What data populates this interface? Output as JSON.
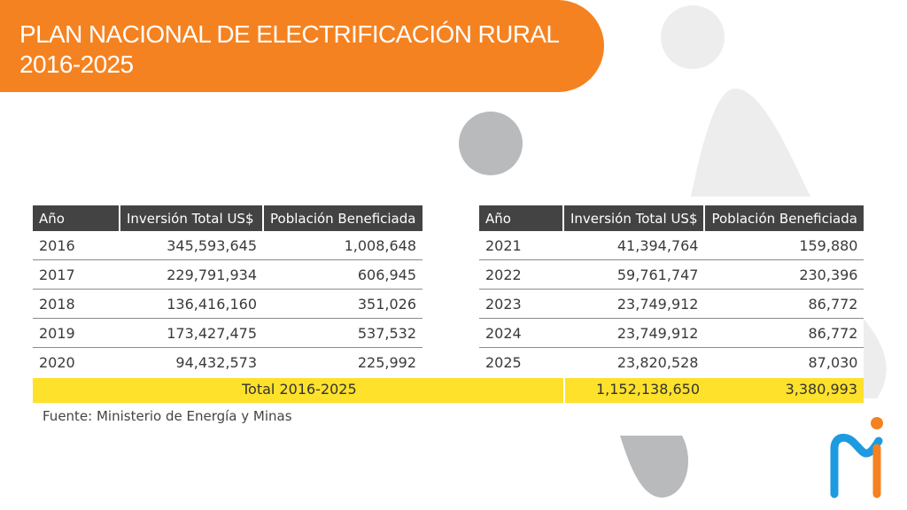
{
  "header": {
    "title_line1": "PLAN NACIONAL DE ELECTRIFICACIÓN RURAL",
    "title_line2": "2016-2025"
  },
  "columns": [
    "Año",
    "Inversión Total US$",
    "Población Beneficiada"
  ],
  "left_table": {
    "rows": [
      [
        "2016",
        "345,593,645",
        "1,008,648"
      ],
      [
        "2017",
        "229,791,934",
        "606,945"
      ],
      [
        "2018",
        "136,416,160",
        "351,026"
      ],
      [
        "2019",
        "173,427,475",
        "537,532"
      ],
      [
        "2020",
        "94,432,573",
        "225,992"
      ]
    ]
  },
  "right_table": {
    "rows": [
      [
        "2021",
        "41,394,764",
        "159,880"
      ],
      [
        "2022",
        "59,761,747",
        "230,396"
      ],
      [
        "2023",
        "23,749,912",
        "86,772"
      ],
      [
        "2024",
        "23,749,912",
        "86,772"
      ],
      [
        "2025",
        "23,820,528",
        "87,030"
      ]
    ]
  },
  "total": {
    "label": "Total 2016-2025",
    "investment": "1,152,138,650",
    "population": "3,380,993"
  },
  "source": "Fuente: Ministerio de Energía y Minas",
  "colors": {
    "accent_orange": "#f58220",
    "header_dark": "#434343",
    "total_yellow": "#fde12b",
    "logo_blue": "#1e9ae0"
  }
}
